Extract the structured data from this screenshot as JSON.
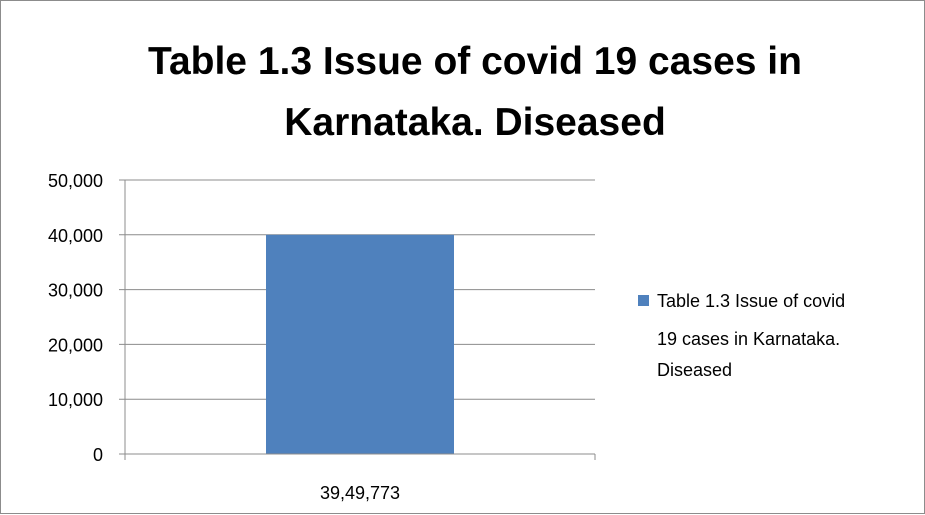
{
  "chart_data": {
    "type": "bar",
    "title_lines": [
      "Table 1.3 Issue of covid 19 cases in",
      "Karnataka. Diseased"
    ],
    "categories": [
      "39,49,773"
    ],
    "series": [
      {
        "name_lines": [
          "Table 1.3 Issue of covid",
          "19 cases in Karnataka.",
          "Diseased"
        ],
        "values": [
          40000
        ],
        "color": "#4f81bd"
      }
    ],
    "y_ticks": [
      "0",
      "10,000",
      "20,000",
      "30,000",
      "40,000",
      "50,000"
    ],
    "ylim": [
      0,
      50000
    ],
    "grid": true,
    "legend_position": "right"
  }
}
